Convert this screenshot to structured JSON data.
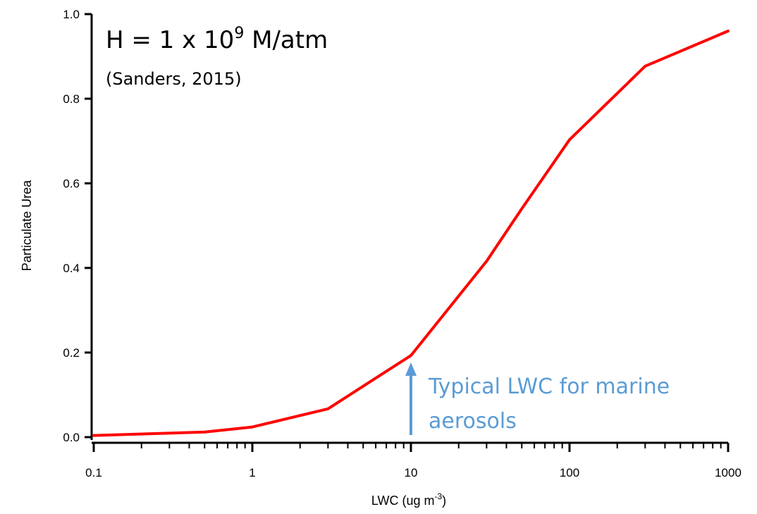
{
  "chart_data": {
    "type": "line",
    "xscale": "log",
    "x": [
      0.1,
      0.5,
      1,
      3,
      10,
      30,
      50,
      100,
      300,
      1000
    ],
    "series": [
      {
        "values": [
          0.004,
          0.012,
          0.024,
          0.067,
          0.193,
          0.416,
          0.54,
          0.703,
          0.877,
          0.96
        ],
        "color": "#ff0000"
      }
    ],
    "xlim": [
      0.1,
      1000
    ],
    "ylim": [
      0.0,
      1.0
    ],
    "xticks": [
      "0.1",
      "1",
      "10",
      "100",
      "1000"
    ],
    "yticks": [
      "0.0",
      "0.2",
      "0.4",
      "0.6",
      "0.8",
      "1.0"
    ],
    "xlabel": {
      "main": "LWC (ug m",
      "sup": "-3",
      "close": ")"
    },
    "ylabel": "Particulate Urea",
    "grid": false,
    "annotations": {
      "henry": {
        "prefix": "H = 1 x 10",
        "sup": "9",
        "suffix": " M/atm"
      },
      "citation": "(Sanders, 2015)",
      "marker_line1": "Typical LWC for marine",
      "marker_line2": "aerosols",
      "marker_x": 10,
      "marker_color": "#5b9bd5"
    }
  }
}
